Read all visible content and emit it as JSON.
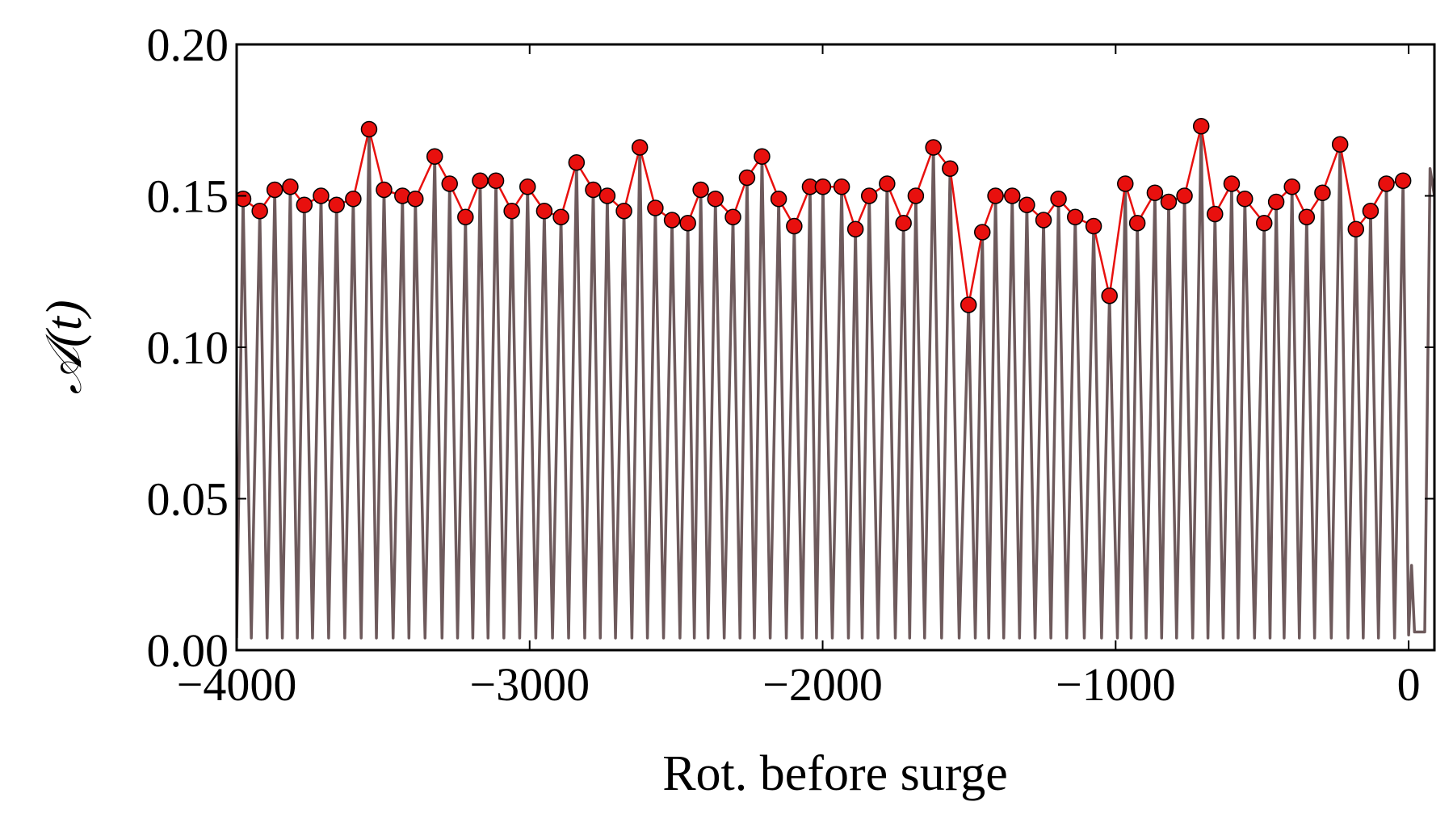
{
  "chart_data": {
    "type": "line",
    "x_label": "Rot. before surge",
    "y_label": "𝒜(t)",
    "xlim": [
      -4000,
      88
    ],
    "ylim": [
      0,
      0.2
    ],
    "xticks": [
      {
        "value": -4000,
        "label": "−4000"
      },
      {
        "value": -3000,
        "label": "−3000"
      },
      {
        "value": -2000,
        "label": "−2000"
      },
      {
        "value": -1000,
        "label": "−1000"
      },
      0
    ],
    "yticks": [
      {
        "value": 0,
        "label": "0.00"
      },
      {
        "value": 0.05,
        "label": "0.05"
      },
      {
        "value": 0.1,
        "label": "0.10"
      },
      {
        "value": 0.15,
        "label": "0.15"
      },
      {
        "value": 0.2,
        "label": "0.20"
      }
    ],
    "grid": false,
    "series": [
      {
        "color": "#6e5a5c",
        "x": [
          -4000,
          -3978,
          -3950,
          -3921,
          -3896,
          -3870,
          -3844,
          -3817,
          -3793,
          -3769,
          -3741,
          -3712,
          -3686,
          -3659,
          -3631,
          -3602,
          -3575,
          -3548,
          -3523,
          -3497,
          -3466,
          -3434,
          -3412,
          -3390,
          -3357,
          -3324,
          -3299,
          -3273,
          -3246,
          -3219,
          -3194,
          -3169,
          -3142,
          -3115,
          -3088,
          -3061,
          -3034,
          -3007,
          -2979,
          -2950,
          -2922,
          -2893,
          -2867,
          -2840,
          -2812,
          -2783,
          -2759,
          -2735,
          -2707,
          -2678,
          -2651,
          -2624,
          -2598,
          -2571,
          -2543,
          -2514,
          -2487,
          -2460,
          -2438,
          -2416,
          -2391,
          -2366,
          -2336,
          -2306,
          -2282,
          -2258,
          -2233,
          -2207,
          -2179,
          -2150,
          -2124,
          -2097,
          -2070,
          -2043,
          -2021,
          -1999,
          -1967,
          -1935,
          -1912,
          -1888,
          -1865,
          -1841,
          -1811,
          -1780,
          -1752,
          -1724,
          -1703,
          -1682,
          -1652,
          -1622,
          -1594,
          -1565,
          -1534,
          -1502,
          -1479,
          -1455,
          -1433,
          -1410,
          -1382,
          -1353,
          -1328,
          -1303,
          -1275,
          -1246,
          -1221,
          -1195,
          -1167,
          -1138,
          -1107,
          -1075,
          -1048,
          -1021,
          -994,
          -967,
          -947,
          -926,
          -896,
          -866,
          -843,
          -819,
          -792,
          -765,
          -737,
          -708,
          -685,
          -661,
          -633,
          -604,
          -582,
          -559,
          -526,
          -493,
          -473,
          -452,
          -425,
          -398,
          -373,
          -348,
          -321,
          -294,
          -264,
          -234,
          -207,
          -180,
          -155,
          -130,
          -103,
          -76,
          -48,
          -19,
          0,
          10,
          20,
          55,
          73,
          88
        ],
        "values": [
          0.004,
          0.149,
          0.004,
          0.145,
          0.004,
          0.152,
          0.004,
          0.153,
          0.004,
          0.147,
          0.004,
          0.15,
          0.004,
          0.147,
          0.004,
          0.149,
          0.004,
          0.172,
          0.004,
          0.152,
          0.004,
          0.15,
          0.004,
          0.149,
          0.004,
          0.163,
          0.004,
          0.154,
          0.004,
          0.143,
          0.004,
          0.155,
          0.004,
          0.155,
          0.004,
          0.145,
          0.004,
          0.153,
          0.004,
          0.145,
          0.004,
          0.143,
          0.004,
          0.161,
          0.004,
          0.152,
          0.004,
          0.15,
          0.004,
          0.145,
          0.004,
          0.166,
          0.004,
          0.146,
          0.004,
          0.142,
          0.004,
          0.141,
          0.004,
          0.152,
          0.004,
          0.149,
          0.004,
          0.143,
          0.004,
          0.156,
          0.004,
          0.163,
          0.004,
          0.149,
          0.004,
          0.14,
          0.004,
          0.153,
          0.004,
          0.153,
          0.004,
          0.153,
          0.004,
          0.139,
          0.004,
          0.15,
          0.004,
          0.154,
          0.004,
          0.141,
          0.004,
          0.15,
          0.004,
          0.166,
          0.004,
          0.159,
          0.004,
          0.114,
          0.004,
          0.138,
          0.004,
          0.15,
          0.004,
          0.15,
          0.004,
          0.147,
          0.004,
          0.142,
          0.004,
          0.149,
          0.004,
          0.143,
          0.004,
          0.14,
          0.004,
          0.117,
          0.004,
          0.154,
          0.004,
          0.141,
          0.004,
          0.151,
          0.004,
          0.148,
          0.004,
          0.15,
          0.004,
          0.173,
          0.004,
          0.144,
          0.004,
          0.154,
          0.004,
          0.149,
          0.004,
          0.141,
          0.004,
          0.148,
          0.004,
          0.153,
          0.004,
          0.143,
          0.004,
          0.151,
          0.004,
          0.167,
          0.004,
          0.139,
          0.004,
          0.145,
          0.004,
          0.154,
          0.004,
          0.155,
          0.005,
          0.028,
          0.006,
          0.006,
          0.159,
          0.15
        ]
      },
      {
        "color": "#e8100e",
        "marker": "circle",
        "x": [
          -3978,
          -3921,
          -3870,
          -3817,
          -3769,
          -3712,
          -3659,
          -3602,
          -3548,
          -3497,
          -3434,
          -3390,
          -3324,
          -3273,
          -3219,
          -3169,
          -3115,
          -3061,
          -3007,
          -2950,
          -2893,
          -2840,
          -2783,
          -2735,
          -2678,
          -2624,
          -2571,
          -2514,
          -2460,
          -2416,
          -2366,
          -2306,
          -2258,
          -2207,
          -2150,
          -2097,
          -2043,
          -1999,
          -1935,
          -1888,
          -1841,
          -1780,
          -1724,
          -1682,
          -1622,
          -1565,
          -1502,
          -1455,
          -1410,
          -1353,
          -1303,
          -1246,
          -1195,
          -1138,
          -1075,
          -1021,
          -967,
          -926,
          -866,
          -819,
          -765,
          -708,
          -661,
          -604,
          -559,
          -493,
          -452,
          -398,
          -348,
          -294,
          -234,
          -180,
          -130,
          -76,
          -19
        ],
        "values": [
          0.149,
          0.145,
          0.152,
          0.153,
          0.147,
          0.15,
          0.147,
          0.149,
          0.172,
          0.152,
          0.15,
          0.149,
          0.163,
          0.154,
          0.143,
          0.155,
          0.155,
          0.145,
          0.153,
          0.145,
          0.143,
          0.161,
          0.152,
          0.15,
          0.145,
          0.166,
          0.146,
          0.142,
          0.141,
          0.152,
          0.149,
          0.143,
          0.156,
          0.163,
          0.149,
          0.14,
          0.153,
          0.153,
          0.153,
          0.139,
          0.15,
          0.154,
          0.141,
          0.15,
          0.166,
          0.159,
          0.114,
          0.138,
          0.15,
          0.15,
          0.147,
          0.142,
          0.149,
          0.143,
          0.14,
          0.117,
          0.154,
          0.141,
          0.151,
          0.148,
          0.15,
          0.173,
          0.144,
          0.154,
          0.149,
          0.141,
          0.148,
          0.153,
          0.143,
          0.151,
          0.167,
          0.139,
          0.145,
          0.154,
          0.155
        ]
      }
    ]
  }
}
